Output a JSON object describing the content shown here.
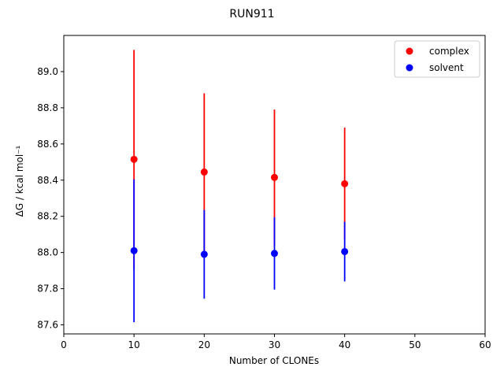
{
  "chart_data": {
    "type": "scatter",
    "title": "RUN911",
    "xlabel": "Number of CLONEs",
    "ylabel": "ΔG / kcal mol⁻¹",
    "xlim": [
      0,
      60
    ],
    "ylim": [
      87.55,
      89.2
    ],
    "xticks": [
      0,
      10,
      20,
      30,
      40,
      50,
      60
    ],
    "yticks": [
      87.6,
      87.8,
      88.0,
      88.2,
      88.4,
      88.6,
      88.8,
      89.0
    ],
    "grid": false,
    "legend_position": "top-right",
    "series": [
      {
        "name": "complex",
        "color": "#ff0000",
        "x": [
          10,
          20,
          30,
          40
        ],
        "y": [
          88.515,
          88.445,
          88.415,
          88.38
        ],
        "yerr": [
          0.605,
          0.435,
          0.375,
          0.31
        ]
      },
      {
        "name": "solvent",
        "color": "#0000ff",
        "x": [
          10,
          20,
          30,
          40
        ],
        "y": [
          88.01,
          87.99,
          87.995,
          88.005
        ],
        "yerr": [
          0.395,
          0.245,
          0.2,
          0.165
        ]
      }
    ]
  }
}
